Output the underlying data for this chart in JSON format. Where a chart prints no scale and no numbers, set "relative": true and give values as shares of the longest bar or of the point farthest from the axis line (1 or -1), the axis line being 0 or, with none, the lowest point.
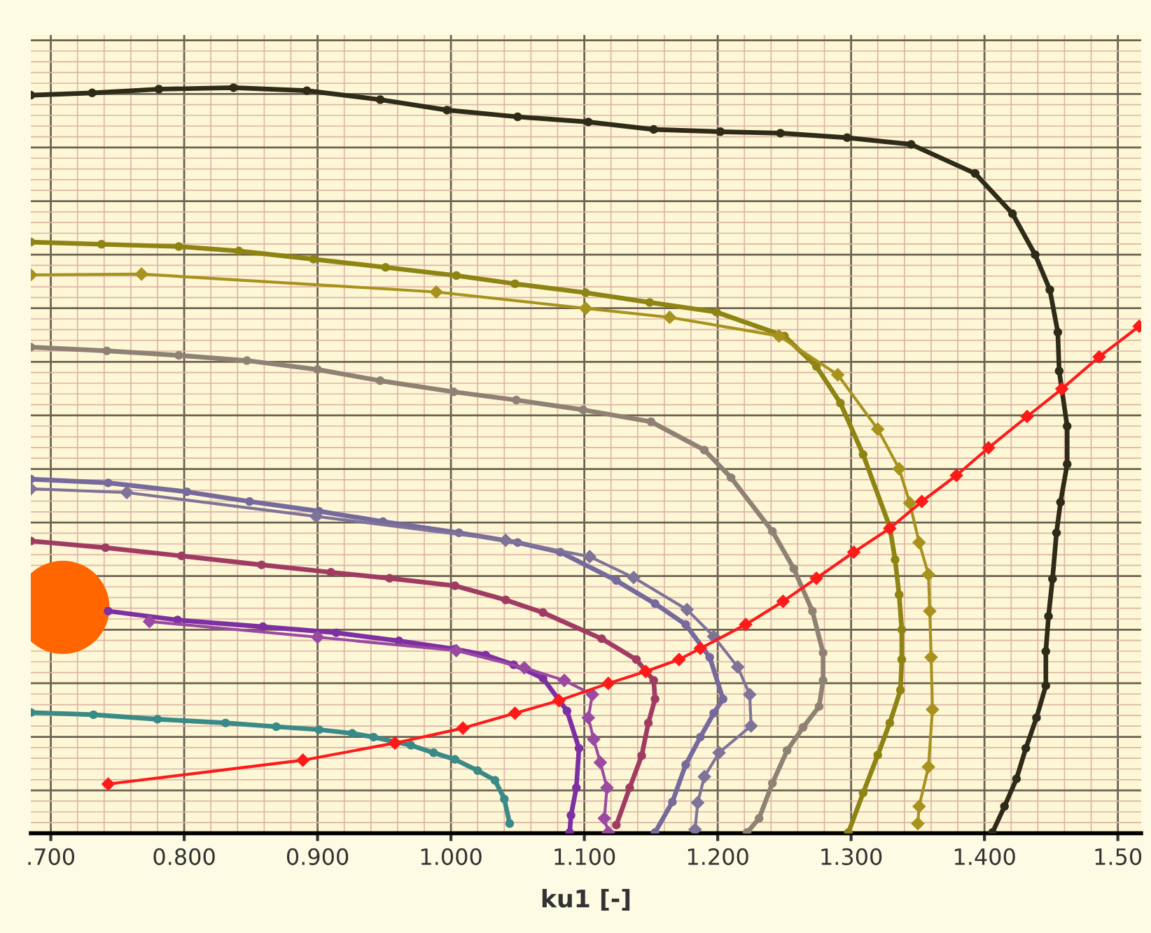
{
  "chart_data": {
    "type": "line",
    "xlabel": "ku1 [-]",
    "relative": true,
    "grid": true,
    "legend": false,
    "xlim": [
      0.685,
      1.5175
    ],
    "xticks": [
      {
        "value": 0.7,
        "label": ".700"
      },
      {
        "value": 0.72,
        "label": null
      },
      {
        "value": 0.74,
        "label": null
      },
      {
        "value": 0.76,
        "label": null
      },
      {
        "value": 0.78,
        "label": null
      },
      {
        "value": 0.8,
        "label": "0.800"
      },
      {
        "value": 0.82,
        "label": null
      },
      {
        "value": 0.84,
        "label": null
      },
      {
        "value": 0.86,
        "label": null
      },
      {
        "value": 0.88,
        "label": null
      },
      {
        "value": 0.9,
        "label": "0.900"
      },
      {
        "value": 0.92,
        "label": null
      },
      {
        "value": 0.94,
        "label": null
      },
      {
        "value": 0.96,
        "label": null
      },
      {
        "value": 0.98,
        "label": null
      },
      {
        "value": 1.0,
        "label": "1.000"
      },
      {
        "value": 1.02,
        "label": null
      },
      {
        "value": 1.04,
        "label": null
      },
      {
        "value": 1.06,
        "label": null
      },
      {
        "value": 1.08,
        "label": null
      },
      {
        "value": 1.1,
        "label": "1.100"
      },
      {
        "value": 1.12,
        "label": null
      },
      {
        "value": 1.14,
        "label": null
      },
      {
        "value": 1.16,
        "label": null
      },
      {
        "value": 1.18,
        "label": null
      },
      {
        "value": 1.2,
        "label": "1.200"
      },
      {
        "value": 1.22,
        "label": null
      },
      {
        "value": 1.24,
        "label": null
      },
      {
        "value": 1.26,
        "label": null
      },
      {
        "value": 1.28,
        "label": null
      },
      {
        "value": 1.3,
        "label": "1.300"
      },
      {
        "value": 1.32,
        "label": null
      },
      {
        "value": 1.34,
        "label": null
      },
      {
        "value": 1.36,
        "label": null
      },
      {
        "value": 1.38,
        "label": null
      },
      {
        "value": 1.4,
        "label": "1.400"
      },
      {
        "value": 1.42,
        "label": null
      },
      {
        "value": 1.44,
        "label": null
      },
      {
        "value": 1.46,
        "label": null
      },
      {
        "value": 1.48,
        "label": null
      },
      {
        "value": 1.5,
        "label": "1.50"
      }
    ],
    "series": [
      {
        "type": "scatter",
        "color": "#ff6600",
        "marker": "circle",
        "x": [
          0.709
        ],
        "values": [
          0.303
        ]
      },
      {
        "color": "#2e2b18",
        "marker": "circle",
        "x": [
          0.685,
          0.731,
          0.781,
          0.837,
          0.892,
          0.947,
          0.997,
          1.05,
          1.103,
          1.152,
          1.202,
          1.247,
          1.297,
          1.345,
          1.393,
          1.421,
          1.438,
          1.449,
          1.455,
          1.456,
          1.462,
          1.462,
          1.457,
          1.454,
          1.451,
          1.448,
          1.446,
          1.446,
          1.439,
          1.431,
          1.424,
          1.415,
          1.406
        ],
        "values": [
          0.99,
          0.993,
          0.998,
          1.0,
          0.996,
          0.984,
          0.97,
          0.961,
          0.954,
          0.944,
          0.941,
          0.939,
          0.933,
          0.924,
          0.885,
          0.831,
          0.776,
          0.729,
          0.672,
          0.62,
          0.546,
          0.495,
          0.444,
          0.403,
          0.341,
          0.291,
          0.244,
          0.198,
          0.155,
          0.114,
          0.073,
          0.036,
          0.001
        ]
      },
      {
        "color": "#8e8414",
        "marker": "circle",
        "x": [
          0.685,
          0.738,
          0.796,
          0.841,
          0.897,
          0.951,
          1.004,
          1.048,
          1.101,
          1.149,
          1.199,
          1.25,
          1.274,
          1.292,
          1.309,
          1.329,
          1.333,
          1.336,
          1.338,
          1.338,
          1.337,
          1.329,
          1.32,
          1.309,
          1.298
        ],
        "values": [
          0.793,
          0.79,
          0.787,
          0.781,
          0.77,
          0.759,
          0.748,
          0.737,
          0.725,
          0.712,
          0.699,
          0.667,
          0.626,
          0.577,
          0.508,
          0.411,
          0.367,
          0.32,
          0.273,
          0.233,
          0.192,
          0.148,
          0.105,
          0.054,
          0.001
        ]
      },
      {
        "color": "#a8921e",
        "marker": "diamond",
        "x": [
          0.685,
          0.768,
          0.989,
          1.101,
          1.164,
          1.246,
          1.29,
          1.32,
          1.336,
          1.344,
          1.351,
          1.358,
          1.359,
          1.36,
          1.361,
          1.358,
          1.351,
          1.35
        ],
        "values": [
          0.749,
          0.75,
          0.726,
          0.704,
          0.692,
          0.667,
          0.615,
          0.542,
          0.489,
          0.443,
          0.39,
          0.347,
          0.298,
          0.236,
          0.166,
          0.089,
          0.036,
          0.013
        ]
      },
      {
        "color": "#8f8275",
        "marker": "circle",
        "x": [
          0.685,
          0.742,
          0.796,
          0.847,
          0.9,
          0.947,
          1.002,
          1.049,
          1.099,
          1.15,
          1.19,
          1.21,
          1.241,
          1.257,
          1.271,
          1.279,
          1.279,
          1.276,
          1.264,
          1.252,
          1.241,
          1.231,
          1.222
        ],
        "values": [
          0.652,
          0.647,
          0.641,
          0.634,
          0.622,
          0.607,
          0.592,
          0.581,
          0.568,
          0.552,
          0.514,
          0.477,
          0.405,
          0.355,
          0.298,
          0.242,
          0.205,
          0.17,
          0.142,
          0.111,
          0.067,
          0.02,
          0.001
        ]
      },
      {
        "color": "#766a9c",
        "marker": "circle",
        "x": [
          0.685,
          0.743,
          0.802,
          0.849,
          0.901,
          0.949,
          1.006,
          1.05,
          1.082,
          1.124,
          1.153,
          1.176,
          1.194,
          1.204,
          1.197,
          1.187,
          1.176,
          1.166,
          1.153
        ],
        "values": [
          0.475,
          0.47,
          0.458,
          0.445,
          0.432,
          0.418,
          0.403,
          0.39,
          0.377,
          0.339,
          0.308,
          0.28,
          0.236,
          0.18,
          0.161,
          0.129,
          0.092,
          0.042,
          0.001
        ]
      },
      {
        "color": "#7f7398",
        "marker": "diamond",
        "x": [
          0.685,
          0.757,
          0.899,
          1.041,
          1.104,
          1.137,
          1.177,
          1.197,
          1.215,
          1.224,
          1.225,
          1.201,
          1.19,
          1.185,
          1.183
        ],
        "values": [
          0.462,
          0.457,
          0.425,
          0.393,
          0.371,
          0.343,
          0.3,
          0.264,
          0.223,
          0.186,
          0.144,
          0.108,
          0.076,
          0.041,
          0.005
        ]
      },
      {
        "color": "#a03c62",
        "marker": "circle",
        "x": [
          0.685,
          0.741,
          0.798,
          0.858,
          0.91,
          0.954,
          1.003,
          1.041,
          1.069,
          1.113,
          1.139,
          1.152,
          1.153,
          1.148,
          1.143,
          1.134,
          1.124
        ],
        "values": [
          0.392,
          0.383,
          0.372,
          0.36,
          0.35,
          0.342,
          0.332,
          0.313,
          0.296,
          0.261,
          0.233,
          0.205,
          0.18,
          0.148,
          0.104,
          0.061,
          0.011
        ]
      },
      {
        "color": "#7d30a2",
        "marker": "circle",
        "x": [
          0.743,
          0.795,
          0.859,
          0.914,
          0.961,
          1.003,
          1.026,
          1.047,
          1.069,
          1.087,
          1.096,
          1.094,
          1.09,
          1.089
        ],
        "values": [
          0.298,
          0.286,
          0.277,
          0.269,
          0.258,
          0.247,
          0.239,
          0.226,
          0.208,
          0.164,
          0.114,
          0.061,
          0.024,
          0.001
        ]
      },
      {
        "color": "#9a4aa0",
        "marker": "diamond",
        "x": [
          0.774,
          0.9,
          1.004,
          1.055,
          1.085,
          1.106,
          1.103,
          1.107,
          1.112,
          1.117,
          1.115,
          1.118
        ],
        "values": [
          0.284,
          0.263,
          0.245,
          0.222,
          0.205,
          0.186,
          0.155,
          0.126,
          0.095,
          0.061,
          0.02,
          0.001
        ]
      },
      {
        "color": "#3a8a88",
        "marker": "circle",
        "x": [
          0.685,
          0.732,
          0.78,
          0.831,
          0.869,
          0.901,
          0.926,
          0.942,
          0.97,
          0.987,
          1.003,
          1.02,
          1.033,
          1.04,
          1.044
        ],
        "values": [
          0.162,
          0.159,
          0.153,
          0.148,
          0.143,
          0.139,
          0.134,
          0.129,
          0.118,
          0.108,
          0.099,
          0.084,
          0.071,
          0.046,
          0.013
        ]
      },
      {
        "color": "#ff1a1a",
        "marker": "diamond",
        "x": [
          0.743,
          0.889,
          0.958,
          1.009,
          1.048,
          1.081,
          1.118,
          1.146,
          1.171,
          1.187,
          1.221,
          1.249,
          1.274,
          1.302,
          1.329,
          1.353,
          1.379,
          1.403,
          1.432,
          1.458,
          1.486,
          1.516
        ],
        "values": [
          0.066,
          0.098,
          0.121,
          0.141,
          0.161,
          0.178,
          0.201,
          0.217,
          0.233,
          0.248,
          0.28,
          0.311,
          0.342,
          0.377,
          0.409,
          0.445,
          0.48,
          0.517,
          0.559,
          0.596,
          0.639,
          0.68
        ]
      }
    ]
  }
}
